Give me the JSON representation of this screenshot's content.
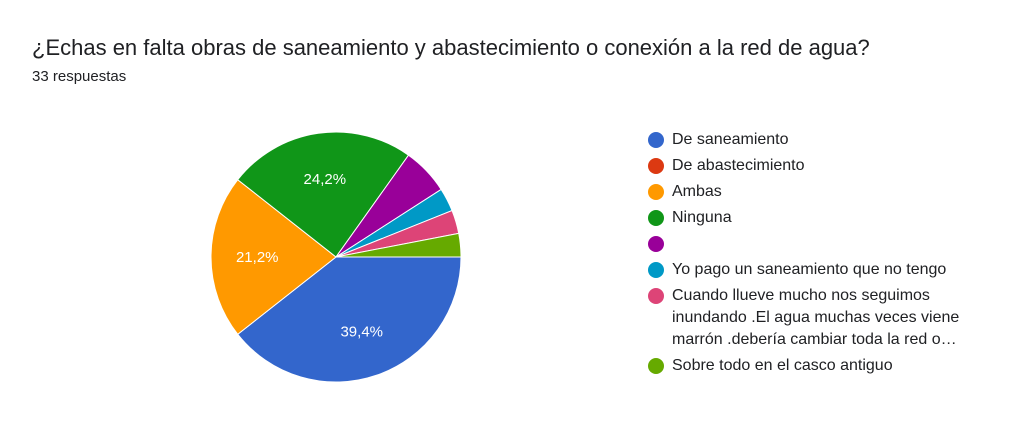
{
  "header": {
    "title": "¿Echas en falta obras de saneamiento y abastecimiento o conexión a la red de agua?",
    "subtitle": "33 respuestas"
  },
  "chart_data": {
    "type": "pie",
    "total": 33,
    "slices": [
      {
        "label": "De saneamiento",
        "value": 13,
        "percent_label": "39,4%",
        "color": "#3366cc"
      },
      {
        "label": "De abastecimiento",
        "value": 0,
        "percent_label": "",
        "color": "#dc3912"
      },
      {
        "label": "Ambas",
        "value": 7,
        "percent_label": "21,2%",
        "color": "#ff9900"
      },
      {
        "label": "Ninguna",
        "value": 8,
        "percent_label": "24,2%",
        "color": "#109618"
      },
      {
        "label": "",
        "value": 2,
        "percent_label": "",
        "color": "#990099"
      },
      {
        "label": "Yo pago un saneamiento que no tengo",
        "value": 1,
        "percent_label": "",
        "color": "#0099c6"
      },
      {
        "label": "Cuando llueve mucho nos seguimos inundando .El agua muchas veces viene marrón .debería cambiar toda la red o…",
        "value": 1,
        "percent_label": "",
        "color": "#dd4477"
      },
      {
        "label": "Sobre todo en el casco antiguo",
        "value": 1,
        "percent_label": "",
        "color": "#66aa00"
      }
    ],
    "legend_position": "right"
  }
}
